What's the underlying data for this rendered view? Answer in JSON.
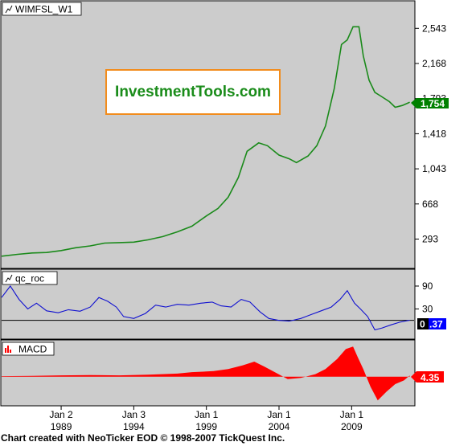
{
  "footer": "Chart created with NeoTicker EOD © 1998-2007 TickQuest Inc.",
  "logo_text": "InvestmentTools.com",
  "colors": {
    "price": "#1a8a1a",
    "roc": "#1010d0",
    "macd": "#ff0000",
    "plot_bg": "#cccccc",
    "badge_price": "#008000",
    "badge_roc": "#0000ff",
    "badge_macd": "#ff0000"
  },
  "chart_data": [
    {
      "type": "line",
      "title": "WIMFSL_W1",
      "x_ticks": [
        {
          "month": "Jan 2",
          "year": "1989",
          "t": 1989.0
        },
        {
          "month": "Jan 3",
          "year": "1994",
          "t": 1994.0
        },
        {
          "month": "Jan 1",
          "year": "1999",
          "t": 1999.0
        },
        {
          "month": "Jan 1",
          "year": "2004",
          "t": 2004.0
        },
        {
          "month": "Jan 1",
          "year": "2009",
          "t": 2009.0
        }
      ],
      "xlim": [
        1984.9,
        2013.3
      ],
      "y_ticks": [
        "2,543",
        "2,168",
        "1,793",
        "1,418",
        "1,043",
        "668",
        "293"
      ],
      "ylim": [
        -3,
        2820
      ],
      "last_value": "1,754",
      "x": [
        1984.9,
        1986,
        1987,
        1988,
        1989,
        1990,
        1991,
        1992,
        1993,
        1994,
        1995,
        1996,
        1997,
        1998,
        1999,
        1999.8,
        2000.5,
        2001.2,
        2001.8,
        2002.6,
        2003.2,
        2004.0,
        2004.7,
        2005.2,
        2006.0,
        2006.6,
        2007.2,
        2007.8,
        2008.3,
        2008.7,
        2009.1,
        2009.5,
        2009.8,
        2010.2,
        2010.6,
        2011.0,
        2011.6,
        2012.0,
        2012.5,
        2013.0
      ],
      "y": [
        110,
        130,
        145,
        150,
        170,
        200,
        220,
        250,
        255,
        260,
        285,
        320,
        370,
        430,
        540,
        620,
        740,
        950,
        1230,
        1320,
        1290,
        1190,
        1150,
        1110,
        1180,
        1290,
        1500,
        1900,
        2370,
        2420,
        2560,
        2560,
        2250,
        1990,
        1860,
        1820,
        1760,
        1700,
        1720,
        1754
      ]
    },
    {
      "type": "line",
      "title": "qc_roc",
      "y_ticks": [
        "90",
        "30"
      ],
      "ylim": [
        -45,
        130
      ],
      "last_value": "0.37",
      "x": [
        1984.9,
        1985.5,
        1986.1,
        1986.7,
        1987.3,
        1988.0,
        1988.8,
        1989.5,
        1990.3,
        1991.0,
        1991.6,
        1992.2,
        1992.8,
        1993.3,
        1994.0,
        1994.8,
        1995.5,
        1996.2,
        1997.0,
        1997.8,
        1998.6,
        1999.4,
        2000.0,
        2000.7,
        2001.4,
        2002.0,
        2002.7,
        2003.3,
        2004.0,
        2004.7,
        2005.5,
        2006.2,
        2006.9,
        2007.6,
        2008.2,
        2008.7,
        2009.2,
        2009.6,
        2010.1,
        2010.6,
        2011.1,
        2011.7,
        2012.3,
        2013.0
      ],
      "y": [
        60,
        90,
        55,
        30,
        45,
        25,
        20,
        28,
        24,
        35,
        60,
        50,
        35,
        10,
        5,
        18,
        40,
        35,
        42,
        40,
        45,
        48,
        38,
        35,
        55,
        48,
        22,
        5,
        0,
        -2,
        5,
        15,
        25,
        35,
        55,
        78,
        45,
        30,
        10,
        -25,
        -20,
        -12,
        -5,
        0.37
      ]
    },
    {
      "type": "bar",
      "title": "MACD",
      "last_value": "4.35",
      "ylim": [
        -110,
        140
      ],
      "x": [
        1984.9,
        1987,
        1989,
        1991,
        1993,
        1995,
        1997,
        1998,
        1999.5,
        2000.5,
        2001.5,
        2002.3,
        2003.0,
        2003.8,
        2004.6,
        2005.5,
        2006.5,
        2007.2,
        2008.0,
        2008.6,
        2009.1,
        2009.4,
        2009.8,
        2010.3,
        2010.8,
        2011.4,
        2012.0,
        2012.6,
        2013.0
      ],
      "y": [
        2,
        3,
        5,
        6,
        5,
        8,
        12,
        18,
        22,
        30,
        45,
        60,
        40,
        15,
        -10,
        -5,
        10,
        30,
        70,
        110,
        120,
        80,
        30,
        -40,
        -95,
        -60,
        -30,
        -15,
        4.35
      ]
    }
  ]
}
